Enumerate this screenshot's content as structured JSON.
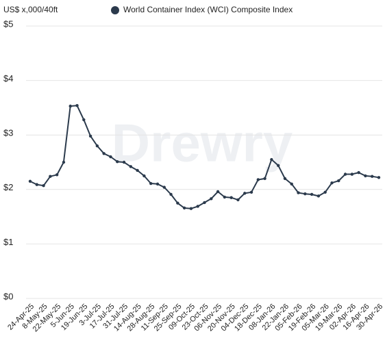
{
  "chart_data": {
    "type": "line",
    "y_axis_label": "US$ x,000/40ft",
    "watermark": "Drewry",
    "categories": [
      "24-Apr-25",
      null,
      "8-May-25",
      null,
      "22-May-25",
      null,
      "5-Jun-25",
      null,
      "19-Jun-25",
      null,
      "3-Jul-25",
      null,
      "17-Jul-25",
      null,
      "31-Jul-25",
      null,
      "14-Aug-25",
      null,
      "28-Aug-25",
      null,
      "11-Sep-25",
      null,
      "25-Sep-25",
      null,
      "09-Oct-25",
      null,
      "23-Oct-25",
      null,
      "06-Nov-25",
      null,
      "20-Nov-25",
      null,
      "04-Dec-25",
      null,
      "18-Dec-25",
      null,
      "08-Jan-26",
      null,
      "22-Jan-26",
      null,
      "05-Feb-26",
      null,
      "19-Feb-26",
      null,
      "05-Mar-26",
      null,
      "19-Mar-26",
      null,
      "02-Apr-26",
      null,
      "16-Apr-26",
      null,
      "30-Apr-26"
    ],
    "series": [
      {
        "name": "World Container Index (WCI) Composite Index",
        "color": "#2b3a4c",
        "values": [
          2.15,
          2.09,
          2.07,
          2.24,
          2.27,
          2.5,
          3.53,
          3.54,
          3.28,
          2.98,
          2.8,
          2.66,
          2.6,
          2.51,
          2.5,
          2.42,
          2.35,
          2.25,
          2.11,
          2.1,
          2.04,
          1.91,
          1.75,
          1.66,
          1.65,
          1.69,
          1.76,
          1.83,
          1.96,
          1.86,
          1.85,
          1.81,
          1.93,
          1.95,
          2.18,
          2.2,
          2.55,
          2.44,
          2.2,
          2.1,
          1.94,
          1.92,
          1.91,
          1.88,
          1.95,
          2.12,
          2.16,
          2.28,
          2.28,
          2.31,
          2.25,
          2.24,
          2.22
        ]
      }
    ],
    "ylim": [
      0,
      5
    ],
    "yticks": [
      {
        "value": 0,
        "label": "$0"
      },
      {
        "value": 1,
        "label": "$1"
      },
      {
        "value": 2,
        "label": "$2"
      },
      {
        "value": 3,
        "label": "$3"
      },
      {
        "value": 4,
        "label": "$4"
      },
      {
        "value": 5,
        "label": "$5"
      }
    ],
    "grid": true
  }
}
